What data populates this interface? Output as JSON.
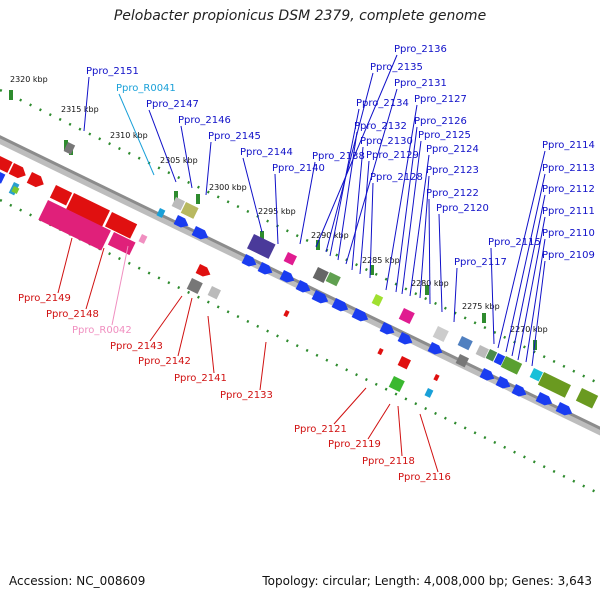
{
  "title": "Pelobacter propionicus DSM 2379, complete genome",
  "footer": {
    "accession": "Accession: NC_008609",
    "summary": "Topology: circular; Length: 4,008,000 bp; Genes: 3,643"
  },
  "colors": {
    "backbone": "#8c8c8c",
    "ruler": "#2e8b2e",
    "forward_label": "#1010c8",
    "reverse_label": "#d01010",
    "rna_forward": "#19a0d8",
    "rna_reverse": "#f08fc0"
  },
  "ticks": [
    {
      "label": "2320 kbp"
    },
    {
      "label": "2315 kbp"
    },
    {
      "label": "2310 kbp"
    },
    {
      "label": "2305 kbp"
    },
    {
      "label": "2300 kbp"
    },
    {
      "label": "2295 kbp"
    },
    {
      "label": "2290 kbp"
    },
    {
      "label": "2285 kbp"
    },
    {
      "label": "2280 kbp"
    },
    {
      "label": "2275 kbp"
    },
    {
      "label": "2270 kbp"
    }
  ],
  "forward_genes": [
    {
      "label": "Ppro_2151",
      "kind": "gene"
    },
    {
      "label": "Ppro_R0041",
      "kind": "rna"
    },
    {
      "label": "Ppro_2147",
      "kind": "gene"
    },
    {
      "label": "Ppro_2146",
      "kind": "gene"
    },
    {
      "label": "Ppro_2145",
      "kind": "gene"
    },
    {
      "label": "Ppro_2144",
      "kind": "gene"
    },
    {
      "label": "Ppro_2140",
      "kind": "gene"
    },
    {
      "label": "Ppro_2138",
      "kind": "gene"
    },
    {
      "label": "Ppro_2136",
      "kind": "gene"
    },
    {
      "label": "Ppro_2135",
      "kind": "gene"
    },
    {
      "label": "Ppro_2134",
      "kind": "gene"
    },
    {
      "label": "Ppro_2132",
      "kind": "gene"
    },
    {
      "label": "Ppro_2131",
      "kind": "gene"
    },
    {
      "label": "Ppro_2130",
      "kind": "gene"
    },
    {
      "label": "Ppro_2129",
      "kind": "gene"
    },
    {
      "label": "Ppro_2128",
      "kind": "gene"
    },
    {
      "label": "Ppro_2127",
      "kind": "gene"
    },
    {
      "label": "Ppro_2126",
      "kind": "gene"
    },
    {
      "label": "Ppro_2125",
      "kind": "gene"
    },
    {
      "label": "Ppro_2124",
      "kind": "gene"
    },
    {
      "label": "Ppro_2123",
      "kind": "gene"
    },
    {
      "label": "Ppro_2122",
      "kind": "gene"
    },
    {
      "label": "Ppro_2120",
      "kind": "gene"
    },
    {
      "label": "Ppro_2117",
      "kind": "gene"
    },
    {
      "label": "Ppro_2115",
      "kind": "gene"
    },
    {
      "label": "Ppro_2114",
      "kind": "gene"
    },
    {
      "label": "Ppro_2113",
      "kind": "gene"
    },
    {
      "label": "Ppro_2112",
      "kind": "gene"
    },
    {
      "label": "Ppro_2111",
      "kind": "gene"
    },
    {
      "label": "Ppro_2110",
      "kind": "gene"
    },
    {
      "label": "Ppro_2109",
      "kind": "gene"
    }
  ],
  "reverse_genes": [
    {
      "label": "Ppro_2149",
      "kind": "gene"
    },
    {
      "label": "Ppro_2148",
      "kind": "gene"
    },
    {
      "label": "Ppro_R0042",
      "kind": "rna"
    },
    {
      "label": "Ppro_2143",
      "kind": "gene"
    },
    {
      "label": "Ppro_2142",
      "kind": "gene"
    },
    {
      "label": "Ppro_2141",
      "kind": "gene"
    },
    {
      "label": "Ppro_2133",
      "kind": "gene"
    },
    {
      "label": "Ppro_2121",
      "kind": "gene"
    },
    {
      "label": "Ppro_2119",
      "kind": "gene"
    },
    {
      "label": "Ppro_2118",
      "kind": "gene"
    },
    {
      "label": "Ppro_2116",
      "kind": "gene"
    }
  ]
}
